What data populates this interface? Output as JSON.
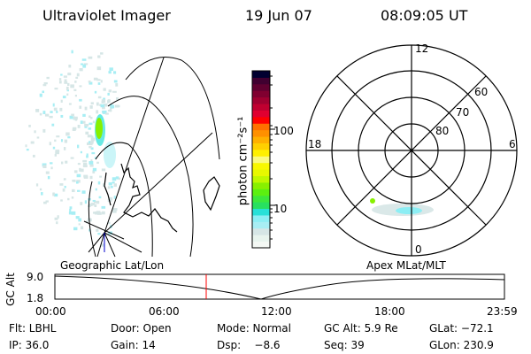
{
  "header": {
    "title": "Ultraviolet Imager",
    "date": "19 Jun 07",
    "time": "08:09:05 UT"
  },
  "colorbar": {
    "label": "photon cm⁻²s⁻¹",
    "ticks": [
      "100",
      "10"
    ],
    "colors": [
      "#f4f8f4",
      "#e8f4ee",
      "#d6e6e6",
      "#a8eef4",
      "#8ceef4",
      "#28e0d8",
      "#28e060",
      "#3ce83c",
      "#5cf010",
      "#88f000",
      "#c0f800",
      "#e8f800",
      "#f8f800",
      "#fafa80",
      "#fff000",
      "#ffd000",
      "#ffb000",
      "#ff9000",
      "#ff7000",
      "#ff0000",
      "#e00030",
      "#c00030",
      "#a00030",
      "#800030",
      "#600030",
      "#400030",
      "#000030"
    ]
  },
  "polar": {
    "mlt_labels": {
      "top": "12",
      "right": "6",
      "bottom": "0",
      "left": "18"
    },
    "lat_labels": [
      "60",
      "70",
      "80"
    ]
  },
  "timeline": {
    "left_label": "Geographic Lat/Lon",
    "right_label": "Apex MLat/MLT",
    "y_axis_label": "GC Alt",
    "y_ticks": [
      "9.0",
      "1.8"
    ],
    "x_ticks": [
      "00:00",
      "06:00",
      "12:00",
      "18:00",
      "23:59"
    ],
    "current_marker_color": "#ff0000"
  },
  "status": {
    "row1": [
      "Flt: LBHL",
      "Door: Open",
      "Mode: Normal",
      "GC Alt: 5.9 Re",
      "GLat: −72.1"
    ],
    "row2": [
      "IP: 36.0",
      "Gain: 14",
      "Dsp:    −8.6",
      "Seq: 39",
      "GLon: 230.9"
    ]
  }
}
